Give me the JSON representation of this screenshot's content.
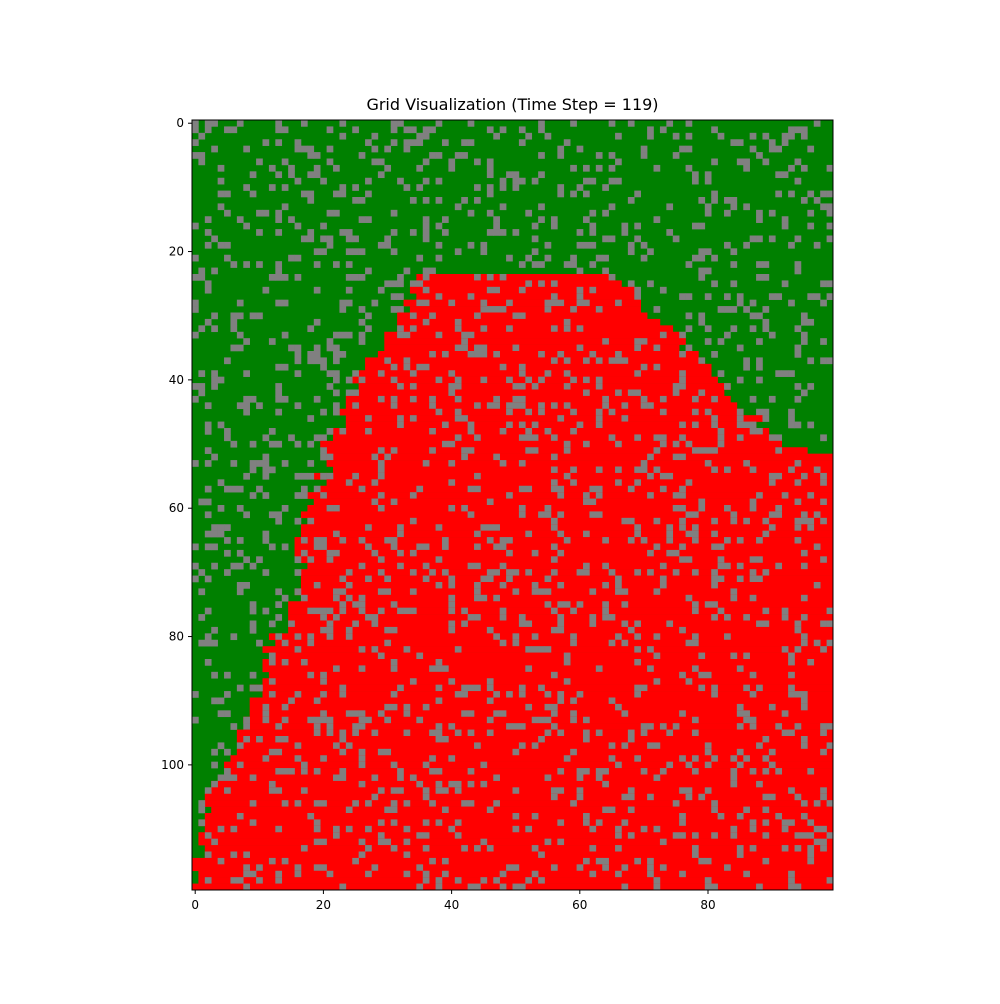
{
  "chart_data": {
    "type": "heatmap",
    "title": "Grid Visualization (Time Step = 119)",
    "xlabel": "",
    "ylabel": "",
    "grid_cols": 100,
    "grid_rows": 120,
    "x_ticks": [
      0,
      20,
      40,
      60,
      80
    ],
    "y_ticks": [
      0,
      20,
      40,
      60,
      80,
      100
    ],
    "grid": false,
    "categories": [
      {
        "state": "tree",
        "color": "#008000"
      },
      {
        "state": "burning",
        "color": "#ff0000"
      },
      {
        "state": "empty",
        "color": "#808080"
      }
    ],
    "empty_fraction": 0.16,
    "burned_region_boundary": [
      {
        "row": 0,
        "left": null,
        "right": null
      },
      {
        "row": 23,
        "left": null,
        "right": null
      },
      {
        "row": 24,
        "left": 36,
        "right": 64
      },
      {
        "row": 26,
        "left": 34,
        "right": 67
      },
      {
        "row": 28,
        "left": 33,
        "right": 69
      },
      {
        "row": 30,
        "left": 32,
        "right": 71
      },
      {
        "row": 32,
        "left": 31,
        "right": 73
      },
      {
        "row": 34,
        "left": 30,
        "right": 75
      },
      {
        "row": 36,
        "left": 29,
        "right": 77
      },
      {
        "row": 38,
        "left": 27,
        "right": 79
      },
      {
        "row": 40,
        "left": 25,
        "right": 81
      },
      {
        "row": 42,
        "left": 24,
        "right": 83
      },
      {
        "row": 44,
        "left": 23,
        "right": 85
      },
      {
        "row": 46,
        "left": 23,
        "right": 87
      },
      {
        "row": 48,
        "left": 22,
        "right": 89
      },
      {
        "row": 50,
        "left": 21,
        "right": 91
      },
      {
        "row": 52,
        "left": 21,
        "right": 99
      },
      {
        "row": 56,
        "left": 20,
        "right": 99
      },
      {
        "row": 60,
        "left": 18,
        "right": 99
      },
      {
        "row": 64,
        "left": 17,
        "right": 99
      },
      {
        "row": 68,
        "left": 17,
        "right": 99
      },
      {
        "row": 72,
        "left": 16,
        "right": 99
      },
      {
        "row": 76,
        "left": 15,
        "right": 99
      },
      {
        "row": 80,
        "left": 13,
        "right": 99
      },
      {
        "row": 84,
        "left": 11,
        "right": 99
      },
      {
        "row": 88,
        "left": 10,
        "right": 99
      },
      {
        "row": 92,
        "left": 8,
        "right": 99
      },
      {
        "row": 96,
        "left": 7,
        "right": 99
      },
      {
        "row": 100,
        "left": 5,
        "right": 99
      },
      {
        "row": 104,
        "left": 3,
        "right": 99
      },
      {
        "row": 108,
        "left": 2,
        "right": 99
      },
      {
        "row": 112,
        "left": 1,
        "right": 99
      },
      {
        "row": 116,
        "left": 0,
        "right": 99
      },
      {
        "row": 119,
        "left": 0,
        "right": 99
      }
    ]
  }
}
